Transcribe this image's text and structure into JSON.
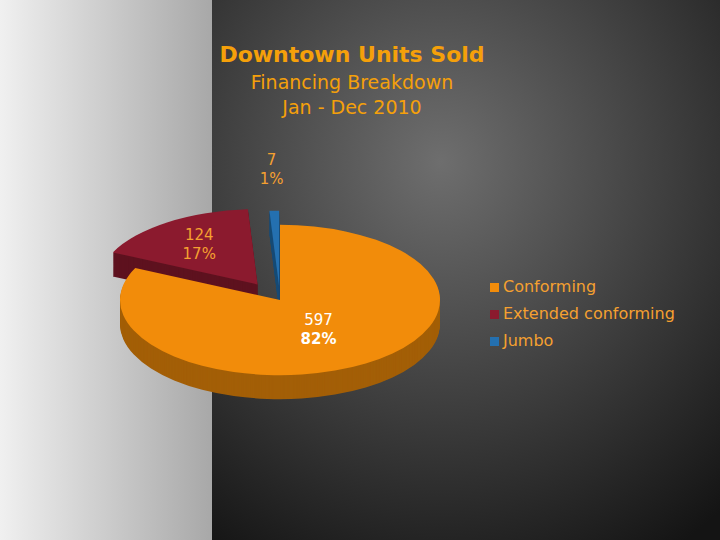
{
  "chart_data": {
    "type": "pie",
    "title": "Downtown Units Sold",
    "subtitle": [
      "Financing Breakdown",
      "Jan - Dec 2010"
    ],
    "categories": [
      "Conforming",
      "Extended conforming",
      "Jumbo"
    ],
    "values": [
      597,
      124,
      7
    ],
    "percents": [
      82,
      17,
      1
    ],
    "percent_labels": [
      "82%",
      "17%",
      "1%"
    ],
    "colors": [
      "#f28c0a",
      "#8b1a2e",
      "#2470b0"
    ],
    "data_labels": true,
    "legend": "right"
  }
}
